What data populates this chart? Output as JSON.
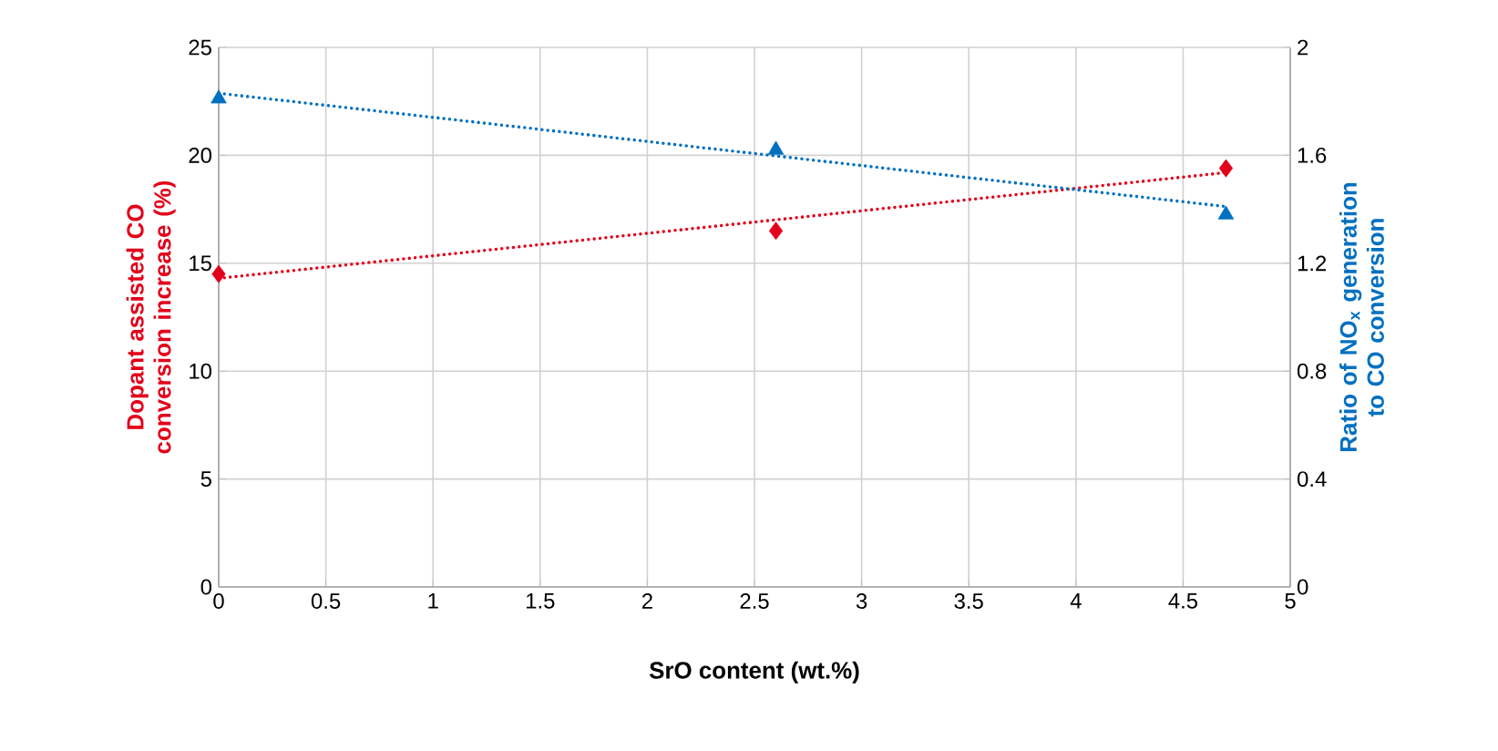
{
  "chart_data": {
    "type": "scatter",
    "xlabel": "SrO content (wt.%)",
    "ylabel": "Dopant assisted CO conversion increase (%)",
    "y2label": "Ratio of NO$_{x}$ generation to CO conversion",
    "xlim": [
      0,
      5
    ],
    "xticks": [
      0,
      0.5,
      1,
      1.5,
      2,
      2.5,
      3,
      3.5,
      4,
      4.5,
      5
    ],
    "ylim": [
      0,
      25
    ],
    "yticks": [
      0,
      5,
      10,
      15,
      20,
      25
    ],
    "y2lim": [
      0,
      2
    ],
    "y2ticks": [
      0,
      0.4,
      0.8,
      1.2,
      1.6,
      2
    ],
    "grid": true,
    "series": [
      {
        "x": [
          0,
          2.6,
          4.7
        ],
        "values": [
          14.5,
          16.5,
          19.4
        ],
        "color": "#e2001a",
        "marker": "diamond"
      },
      {
        "axis": "y2",
        "x": [
          0,
          2.6,
          4.7
        ],
        "values": [
          1.81,
          1.62,
          1.38
        ],
        "color": "#0070c0",
        "marker": "triangle"
      },
      {
        "type": "line",
        "x": [
          0,
          4.7
        ],
        "values": [
          14.3,
          19.2
        ],
        "color": "#e2001a",
        "marker": "none",
        "line_style": "dotted"
      },
      {
        "type": "line",
        "axis": "y2",
        "x": [
          0,
          4.7
        ],
        "values": [
          1.83,
          1.41
        ],
        "color": "#0070c0",
        "marker": "none",
        "line_style": "dotted"
      }
    ]
  }
}
